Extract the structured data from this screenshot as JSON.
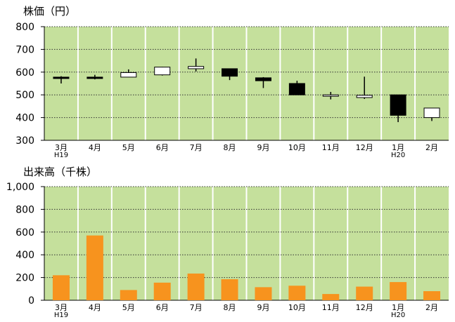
{
  "chart_data": [
    {
      "type": "candlestick",
      "title": "株価（円）",
      "ylim": [
        300,
        800
      ],
      "yticks": [
        "300",
        "400",
        "500",
        "600",
        "700",
        "800"
      ],
      "categories": [
        "3月",
        "4月",
        "5月",
        "6月",
        "7月",
        "8月",
        "9月",
        "10月",
        "11月",
        "12月",
        "1月",
        "2月"
      ],
      "era_labels": [
        {
          "index": 0,
          "text": "H19"
        },
        {
          "index": 10,
          "text": "H20"
        }
      ],
      "grid": true,
      "background_color": "#c5e09c",
      "up_color": "#ffffff",
      "down_color": "#000000",
      "ohlc": [
        {
          "open": 578,
          "high": 582,
          "low": 550,
          "close": 575
        },
        {
          "open": 578,
          "high": 588,
          "low": 568,
          "close": 577
        },
        {
          "open": 578,
          "high": 612,
          "low": 578,
          "close": 598
        },
        {
          "open": 588,
          "high": 623,
          "low": 585,
          "close": 622
        },
        {
          "open": 615,
          "high": 660,
          "low": 603,
          "close": 625
        },
        {
          "open": 615,
          "high": 615,
          "low": 565,
          "close": 582
        },
        {
          "open": 575,
          "high": 578,
          "low": 530,
          "close": 562
        },
        {
          "open": 550,
          "high": 562,
          "low": 500,
          "close": 500
        },
        {
          "open": 500,
          "high": 513,
          "low": 480,
          "close": 500
        },
        {
          "open": 488,
          "high": 580,
          "low": 482,
          "close": 498
        },
        {
          "open": 500,
          "high": 500,
          "low": 380,
          "close": 410
        },
        {
          "open": 400,
          "high": 442,
          "low": 385,
          "close": 442
        }
      ]
    },
    {
      "type": "bar",
      "title": "出来高（千株）",
      "ylim": [
        0,
        1000
      ],
      "yticks": [
        "0",
        "200",
        "400",
        "600",
        "800",
        "1,000"
      ],
      "categories": [
        "3月",
        "4月",
        "5月",
        "6月",
        "7月",
        "8月",
        "9月",
        "10月",
        "11月",
        "12月",
        "1月",
        "2月"
      ],
      "era_labels": [
        {
          "index": 0,
          "text": "H19"
        },
        {
          "index": 10,
          "text": "H20"
        }
      ],
      "grid": true,
      "background_color": "#c5e09c",
      "bar_color": "#f7931e",
      "values": [
        220,
        570,
        90,
        155,
        235,
        185,
        115,
        128,
        55,
        120,
        160,
        80
      ]
    }
  ]
}
